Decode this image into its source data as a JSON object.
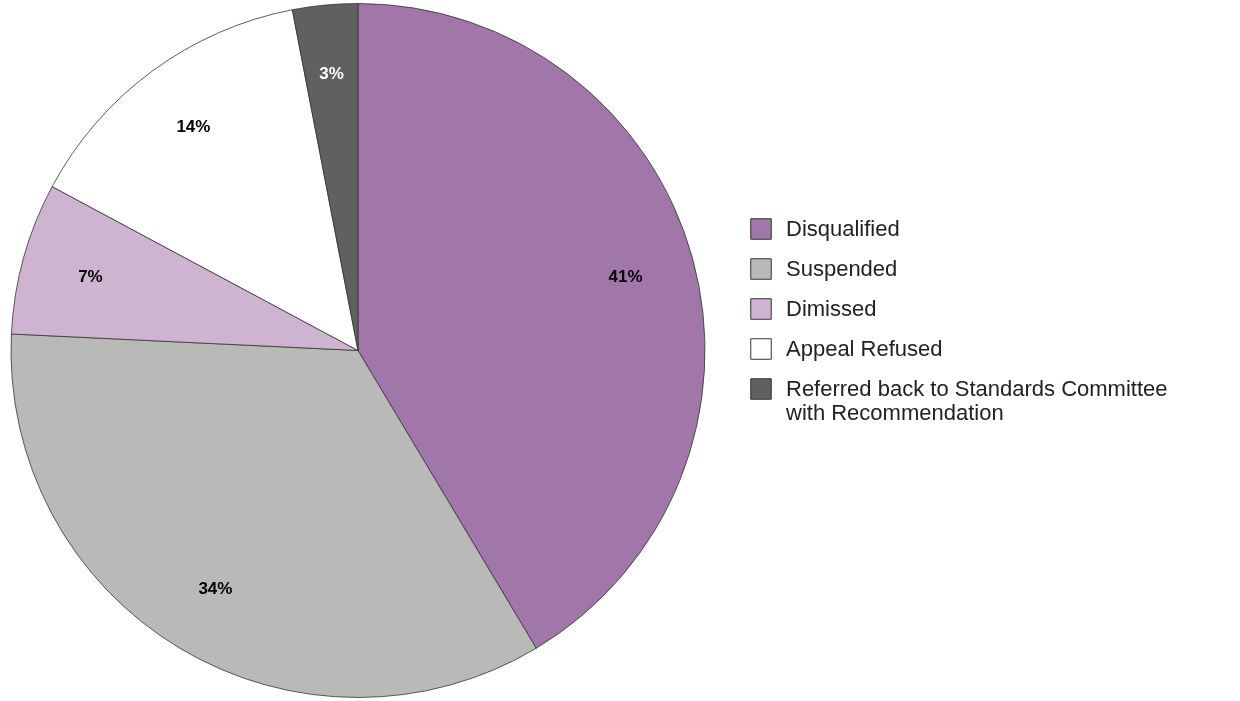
{
  "chart_data": {
    "type": "pie",
    "categories": [
      "Disqualified",
      "Suspended",
      "Dimissed",
      "Appeal Refused",
      "Referred back to Standards Committee with Recommendation"
    ],
    "values": [
      41,
      34,
      7,
      14,
      3
    ],
    "value_labels": [
      "41%",
      "34%",
      "7%",
      "14%",
      "3%"
    ],
    "colors": [
      "#a077a8",
      "#b9bab8",
      "#cfb4d1",
      "#ffffff",
      "#606060"
    ],
    "legend": "right"
  }
}
